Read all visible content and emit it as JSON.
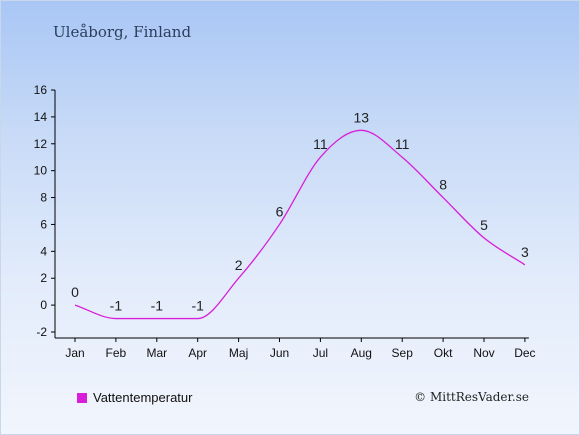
{
  "title": "Uleåborg, Finland",
  "credit": "© MittResVader.se",
  "colors": {
    "line": "#d81ed8",
    "axis": "#000000"
  },
  "chart_data": {
    "type": "line",
    "categories": [
      "Jan",
      "Feb",
      "Mar",
      "Apr",
      "Maj",
      "Jun",
      "Jul",
      "Aug",
      "Sep",
      "Okt",
      "Nov",
      "Dec"
    ],
    "series": [
      {
        "name": "Vattentemperatur",
        "values": [
          0,
          -1,
          -1,
          -1,
          2,
          6,
          11,
          13,
          11,
          8,
          5,
          3
        ]
      }
    ],
    "yticks": [
      -2,
      0,
      2,
      4,
      6,
      8,
      10,
      12,
      14,
      16
    ],
    "ylim": [
      -2,
      16
    ],
    "xlabel": "",
    "ylabel": "",
    "grid": false,
    "legend": "bottom-left"
  }
}
